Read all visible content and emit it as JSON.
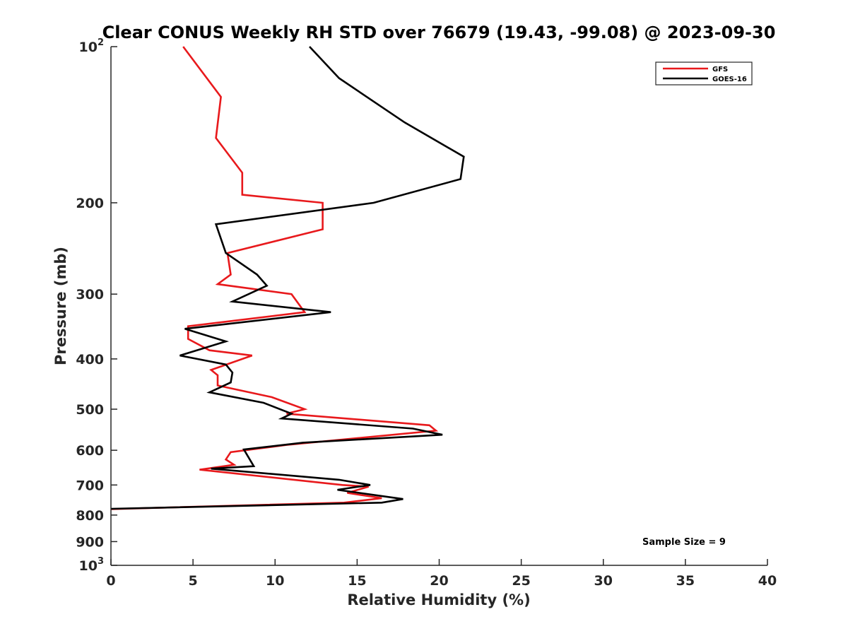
{
  "chart_data": {
    "type": "line",
    "title": "Clear CONUS Weekly RH STD over 76679 (19.43, -99.08) @ 2023-09-30",
    "xlabel": "Relative Humidity (%)",
    "ylabel": "Pressure (mb)",
    "xlim": [
      0,
      40
    ],
    "ylim": [
      100,
      1000
    ],
    "y_scale": "log",
    "y_reversed": true,
    "x_ticks": [
      "0",
      "5",
      "10",
      "15",
      "20",
      "25",
      "30",
      "35",
      "40"
    ],
    "y_ticks": [
      {
        "value": 100,
        "base": "10",
        "exp": "2"
      },
      {
        "value": 200,
        "label": "200"
      },
      {
        "value": 300,
        "label": "300"
      },
      {
        "value": 400,
        "label": "400"
      },
      {
        "value": 500,
        "label": "500"
      },
      {
        "value": 600,
        "label": "600"
      },
      {
        "value": 700,
        "label": "700"
      },
      {
        "value": 800,
        "label": "800"
      },
      {
        "value": 900,
        "label": "900"
      },
      {
        "value": 1000,
        "base": "10",
        "exp": "3"
      }
    ],
    "legend_position": "top-right",
    "grid": false,
    "annotation": "Sample Size = 9",
    "series": [
      {
        "name": "GFS",
        "color": "#e8191c",
        "points": [
          [
            4.4,
            100
          ],
          [
            6.7,
            125
          ],
          [
            6.4,
            150
          ],
          [
            8.0,
            175
          ],
          [
            8.0,
            193
          ],
          [
            12.9,
            200
          ],
          [
            12.9,
            225
          ],
          [
            7.1,
            250
          ],
          [
            7.3,
            275
          ],
          [
            6.5,
            287
          ],
          [
            11.0,
            300
          ],
          [
            11.8,
            325
          ],
          [
            4.7,
            346
          ],
          [
            4.7,
            366
          ],
          [
            6.0,
            385
          ],
          [
            8.6,
            394
          ],
          [
            6.1,
            420
          ],
          [
            6.5,
            430
          ],
          [
            6.5,
            450
          ],
          [
            9.8,
            474
          ],
          [
            11.8,
            500
          ],
          [
            10.7,
            510
          ],
          [
            19.4,
            537
          ],
          [
            19.8,
            550
          ],
          [
            10.7,
            586
          ],
          [
            7.3,
            605
          ],
          [
            7.0,
            625
          ],
          [
            7.5,
            640
          ],
          [
            5.4,
            654
          ],
          [
            14.1,
            700
          ],
          [
            15.7,
            705
          ],
          [
            14.4,
            725
          ],
          [
            16.5,
            742
          ],
          [
            14.2,
            757
          ],
          [
            0,
            779
          ]
        ]
      },
      {
        "name": "GOES-16",
        "color": "#000000",
        "points": [
          [
            12.1,
            100
          ],
          [
            13.9,
            115
          ],
          [
            17.9,
            140
          ],
          [
            21.5,
            163
          ],
          [
            21.3,
            180
          ],
          [
            16.0,
            200
          ],
          [
            6.4,
            220
          ],
          [
            7.0,
            250
          ],
          [
            8.9,
            275
          ],
          [
            9.5,
            289
          ],
          [
            7.4,
            310
          ],
          [
            13.4,
            325
          ],
          [
            4.5,
            350
          ],
          [
            7.0,
            370
          ],
          [
            4.2,
            394
          ],
          [
            7.0,
            410
          ],
          [
            7.4,
            425
          ],
          [
            7.3,
            444
          ],
          [
            6.0,
            464
          ],
          [
            9.3,
            486
          ],
          [
            11.0,
            510
          ],
          [
            10.4,
            521
          ],
          [
            18.4,
            545
          ],
          [
            20.2,
            560
          ],
          [
            11.7,
            580
          ],
          [
            8.1,
            598
          ],
          [
            8.7,
            644
          ],
          [
            6.1,
            651
          ],
          [
            13.9,
            684
          ],
          [
            15.8,
            700
          ],
          [
            13.8,
            715
          ],
          [
            17.8,
            745
          ],
          [
            16.5,
            757
          ],
          [
            0,
            778
          ]
        ]
      }
    ]
  }
}
